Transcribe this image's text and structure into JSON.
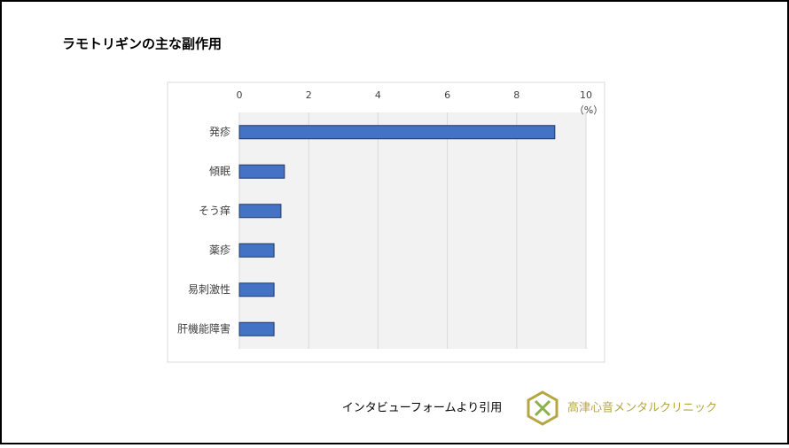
{
  "chart_data": {
    "type": "bar",
    "orientation": "horizontal",
    "title": "ラモトリギンの主な副作用",
    "categories": [
      "発疹",
      "傾眠",
      "そう痒",
      "薬疹",
      "易刺激性",
      "肝機能障害"
    ],
    "values": [
      9.1,
      1.3,
      1.2,
      1.0,
      1.0,
      1.0
    ],
    "color": "#4472c4",
    "x_unit": "（%）",
    "xlim": [
      0,
      10
    ],
    "xticks": [
      0,
      2,
      4,
      6,
      8,
      10
    ],
    "grid": true
  },
  "source": "インタビューフォームより引用",
  "logo_text": "高津心音メンタルクリニック"
}
